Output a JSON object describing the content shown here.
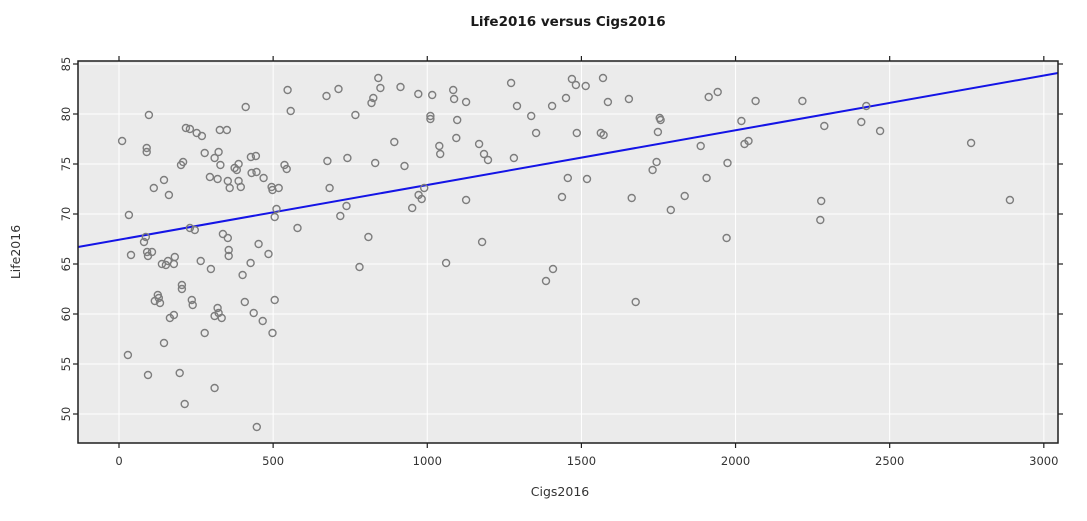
{
  "figure": {
    "title": "Life2016 versus Cigs2016",
    "xlabel": "Cigs2016",
    "ylabel": "Life2016"
  },
  "chart_data": {
    "type": "scatter",
    "title": "Life2016 versus Cigs2016",
    "xlabel": "Cigs2016",
    "ylabel": "Life2016",
    "xlim": [
      -133,
      3046
    ],
    "ylim": [
      47.1,
      85.3
    ],
    "x_ticks": [
      0,
      500,
      1000,
      1500,
      2000,
      2500,
      3000
    ],
    "y_ticks": [
      50,
      55,
      60,
      65,
      70,
      75,
      80,
      85
    ],
    "grid": true,
    "legend": "none",
    "panel_bg": "#ebebeb",
    "grid_color": "#ffffff",
    "border_color": "#1f1f1f",
    "tick_color": "#1f1f1f",
    "point_color": "#7d7d7d",
    "line_color": "#1414e6",
    "regression_line": {
      "x1": -133,
      "y1": 66.7,
      "x2": 3046,
      "y2": 84.1
    },
    "points": [
      [
        547,
        82.4
      ],
      [
        411,
        80.7
      ],
      [
        97,
        79.9
      ],
      [
        557,
        80.3
      ],
      [
        10,
        77.3
      ],
      [
        217,
        78.6
      ],
      [
        230,
        78.5
      ],
      [
        252,
        78.1
      ],
      [
        269,
        77.8
      ],
      [
        327,
        78.4
      ],
      [
        350,
        78.4
      ],
      [
        90,
        76.6
      ],
      [
        90,
        76.2
      ],
      [
        208,
        75.2
      ],
      [
        201,
        74.9
      ],
      [
        278,
        76.1
      ],
      [
        310,
        75.6
      ],
      [
        323,
        76.2
      ],
      [
        329,
        74.9
      ],
      [
        375,
        74.6
      ],
      [
        388,
        75.0
      ],
      [
        382,
        74.4
      ],
      [
        428,
        75.7
      ],
      [
        444,
        75.8
      ],
      [
        430,
        74.1
      ],
      [
        446,
        74.2
      ],
      [
        469,
        73.6
      ],
      [
        537,
        74.9
      ],
      [
        544,
        74.5
      ],
      [
        295,
        73.7
      ],
      [
        320,
        73.5
      ],
      [
        353,
        73.3
      ],
      [
        388,
        73.3
      ],
      [
        113,
        72.6
      ],
      [
        146,
        73.4
      ],
      [
        495,
        72.7
      ],
      [
        841,
        83.6
      ],
      [
        848,
        82.6
      ],
      [
        673,
        81.8
      ],
      [
        712,
        82.5
      ],
      [
        825,
        81.6
      ],
      [
        819,
        81.1
      ],
      [
        913,
        82.7
      ],
      [
        971,
        82.0
      ],
      [
        1016,
        81.9
      ],
      [
        1084,
        82.4
      ],
      [
        1087,
        81.5
      ],
      [
        1126,
        81.2
      ],
      [
        767,
        79.9
      ],
      [
        1010,
        79.8
      ],
      [
        1010,
        79.5
      ],
      [
        1097,
        79.4
      ],
      [
        1272,
        83.1
      ],
      [
        1291,
        80.8
      ],
      [
        1337,
        79.8
      ],
      [
        1405,
        80.8
      ],
      [
        1450,
        81.6
      ],
      [
        1353,
        78.1
      ],
      [
        893,
        77.2
      ],
      [
        1094,
        77.6
      ],
      [
        1039,
        76.8
      ],
      [
        1042,
        76.0
      ],
      [
        1168,
        77.0
      ],
      [
        1184,
        76.0
      ],
      [
        1197,
        75.4
      ],
      [
        1281,
        75.6
      ],
      [
        676,
        75.3
      ],
      [
        741,
        75.6
      ],
      [
        831,
        75.1
      ],
      [
        926,
        74.8
      ],
      [
        990,
        72.6
      ],
      [
        1456,
        73.6
      ],
      [
        683,
        72.6
      ],
      [
        1469,
        83.5
      ],
      [
        1482,
        82.9
      ],
      [
        1514,
        82.8
      ],
      [
        1570,
        83.6
      ],
      [
        1586,
        81.2
      ],
      [
        1654,
        81.5
      ],
      [
        1913,
        81.7
      ],
      [
        1942,
        82.2
      ],
      [
        2065,
        81.3
      ],
      [
        2217,
        81.3
      ],
      [
        1754,
        79.6
      ],
      [
        1757,
        79.4
      ],
      [
        1748,
        78.2
      ],
      [
        2019,
        79.3
      ],
      [
        2288,
        78.8
      ],
      [
        1485,
        78.1
      ],
      [
        1563,
        78.1
      ],
      [
        1572,
        77.9
      ],
      [
        1887,
        76.8
      ],
      [
        2029,
        77.0
      ],
      [
        2042,
        77.3
      ],
      [
        1974,
        75.1
      ],
      [
        1744,
        75.2
      ],
      [
        1731,
        74.4
      ],
      [
        1906,
        73.6
      ],
      [
        1518,
        73.5
      ],
      [
        2408,
        79.2
      ],
      [
        2424,
        80.8
      ],
      [
        2469,
        78.3
      ],
      [
        2764,
        77.1
      ],
      [
        162,
        71.9
      ],
      [
        359,
        72.6
      ],
      [
        395,
        72.7
      ],
      [
        498,
        72.4
      ],
      [
        518,
        72.6
      ],
      [
        32,
        69.9
      ],
      [
        511,
        70.5
      ],
      [
        505,
        69.7
      ],
      [
        579,
        68.6
      ],
      [
        87,
        67.7
      ],
      [
        81,
        67.2
      ],
      [
        230,
        68.6
      ],
      [
        246,
        68.4
      ],
      [
        39,
        65.9
      ],
      [
        91,
        66.2
      ],
      [
        107,
        66.2
      ],
      [
        94,
        65.8
      ],
      [
        139,
        65.0
      ],
      [
        152,
        64.9
      ],
      [
        159,
        65.3
      ],
      [
        178,
        65.0
      ],
      [
        181,
        65.7
      ],
      [
        265,
        65.3
      ],
      [
        298,
        64.5
      ],
      [
        337,
        68.0
      ],
      [
        353,
        67.6
      ],
      [
        356,
        66.4
      ],
      [
        356,
        65.8
      ],
      [
        401,
        63.9
      ],
      [
        427,
        65.1
      ],
      [
        453,
        67.0
      ],
      [
        485,
        66.0
      ],
      [
        505,
        61.4
      ],
      [
        204,
        62.9
      ],
      [
        204,
        62.5
      ],
      [
        126,
        61.9
      ],
      [
        129,
        61.6
      ],
      [
        116,
        61.3
      ],
      [
        133,
        61.1
      ],
      [
        236,
        61.4
      ],
      [
        239,
        60.9
      ],
      [
        320,
        60.6
      ],
      [
        323,
        60.1
      ],
      [
        310,
        59.8
      ],
      [
        333,
        59.6
      ],
      [
        178,
        59.9
      ],
      [
        165,
        59.6
      ],
      [
        408,
        61.2
      ],
      [
        437,
        60.1
      ],
      [
        738,
        70.8
      ],
      [
        718,
        69.8
      ],
      [
        951,
        70.6
      ],
      [
        972,
        71.9
      ],
      [
        982,
        71.5
      ],
      [
        1126,
        71.4
      ],
      [
        1437,
        71.7
      ],
      [
        809,
        67.7
      ],
      [
        1178,
        67.2
      ],
      [
        1061,
        65.1
      ],
      [
        780,
        64.7
      ],
      [
        1408,
        64.5
      ],
      [
        1385,
        63.3
      ],
      [
        1663,
        71.6
      ],
      [
        1835,
        71.8
      ],
      [
        1790,
        70.4
      ],
      [
        2278,
        71.3
      ],
      [
        2275,
        69.4
      ],
      [
        1971,
        67.6
      ],
      [
        1676,
        61.2
      ],
      [
        2890,
        71.4
      ],
      [
        146,
        57.1
      ],
      [
        29,
        55.9
      ],
      [
        94,
        53.9
      ],
      [
        197,
        54.1
      ],
      [
        310,
        52.6
      ],
      [
        213,
        51.0
      ],
      [
        447,
        48.7
      ],
      [
        278,
        58.1
      ],
      [
        466,
        59.3
      ],
      [
        498,
        58.1
      ]
    ]
  }
}
